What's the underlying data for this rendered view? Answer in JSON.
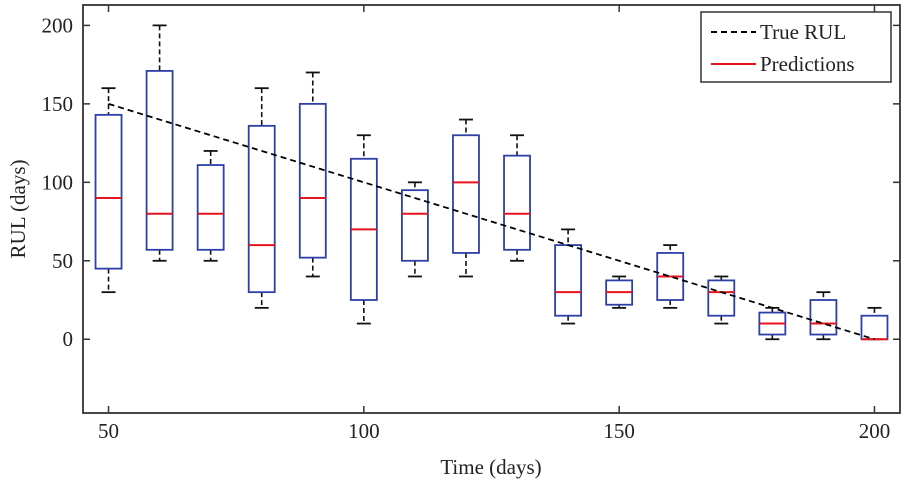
{
  "chart_data": {
    "type": "box",
    "title": "",
    "xlabel": "Time (days)",
    "ylabel": "RUL (days)",
    "xlim": [
      45,
      205
    ],
    "ylim": [
      -47,
      213
    ],
    "xticks": [
      50,
      100,
      150,
      200
    ],
    "yticks": [
      0,
      50,
      100,
      150,
      200
    ],
    "grid": false,
    "legend": {
      "placement": "top-right",
      "entries": [
        {
          "label": "True RUL",
          "style": "dashed",
          "color": "#000000"
        },
        {
          "label": "Predictions",
          "style": "solid",
          "color": "#e8141b"
        }
      ]
    },
    "true_rul": {
      "x": [
        50,
        200
      ],
      "y": [
        150,
        0
      ]
    },
    "boxes": [
      {
        "x": 50,
        "whisker_low": 30,
        "q1": 45,
        "median": 90,
        "q3": 143,
        "whisker_high": 160
      },
      {
        "x": 60,
        "whisker_low": 50,
        "q1": 57,
        "median": 80,
        "q3": 171,
        "whisker_high": 200
      },
      {
        "x": 70,
        "whisker_low": 50,
        "q1": 57,
        "median": 80,
        "q3": 111,
        "whisker_high": 120
      },
      {
        "x": 80,
        "whisker_low": 20,
        "q1": 30,
        "median": 60,
        "q3": 136,
        "whisker_high": 160
      },
      {
        "x": 90,
        "whisker_low": 40,
        "q1": 52,
        "median": 90,
        "q3": 150,
        "whisker_high": 170
      },
      {
        "x": 100,
        "whisker_low": 10,
        "q1": 25,
        "median": 70,
        "q3": 115,
        "whisker_high": 130
      },
      {
        "x": 110,
        "whisker_low": 40,
        "q1": 50,
        "median": 80,
        "q3": 95,
        "whisker_high": 100
      },
      {
        "x": 120,
        "whisker_low": 40,
        "q1": 55,
        "median": 100,
        "q3": 130,
        "whisker_high": 140
      },
      {
        "x": 130,
        "whisker_low": 50,
        "q1": 57,
        "median": 80,
        "q3": 117,
        "whisker_high": 130
      },
      {
        "x": 140,
        "whisker_low": 10,
        "q1": 15,
        "median": 30,
        "q3": 60,
        "whisker_high": 70
      },
      {
        "x": 150,
        "whisker_low": 20,
        "q1": 22,
        "median": 30,
        "q3": 37.5,
        "whisker_high": 40
      },
      {
        "x": 160,
        "whisker_low": 20,
        "q1": 25,
        "median": 40,
        "q3": 55,
        "whisker_high": 60
      },
      {
        "x": 170,
        "whisker_low": 10,
        "q1": 15,
        "median": 30,
        "q3": 37.5,
        "whisker_high": 40
      },
      {
        "x": 180,
        "whisker_low": 0,
        "q1": 3,
        "median": 10,
        "q3": 17,
        "whisker_high": 20
      },
      {
        "x": 190,
        "whisker_low": 0,
        "q1": 3,
        "median": 10,
        "q3": 25,
        "whisker_high": 30
      },
      {
        "x": 200,
        "whisker_low": 0,
        "q1": 0,
        "median": 0,
        "q3": 15,
        "whisker_high": 20
      }
    ],
    "colors": {
      "box": "#2e3fa6",
      "median": "#e8141b",
      "whisker": "#111111",
      "axis": "#333333"
    }
  }
}
